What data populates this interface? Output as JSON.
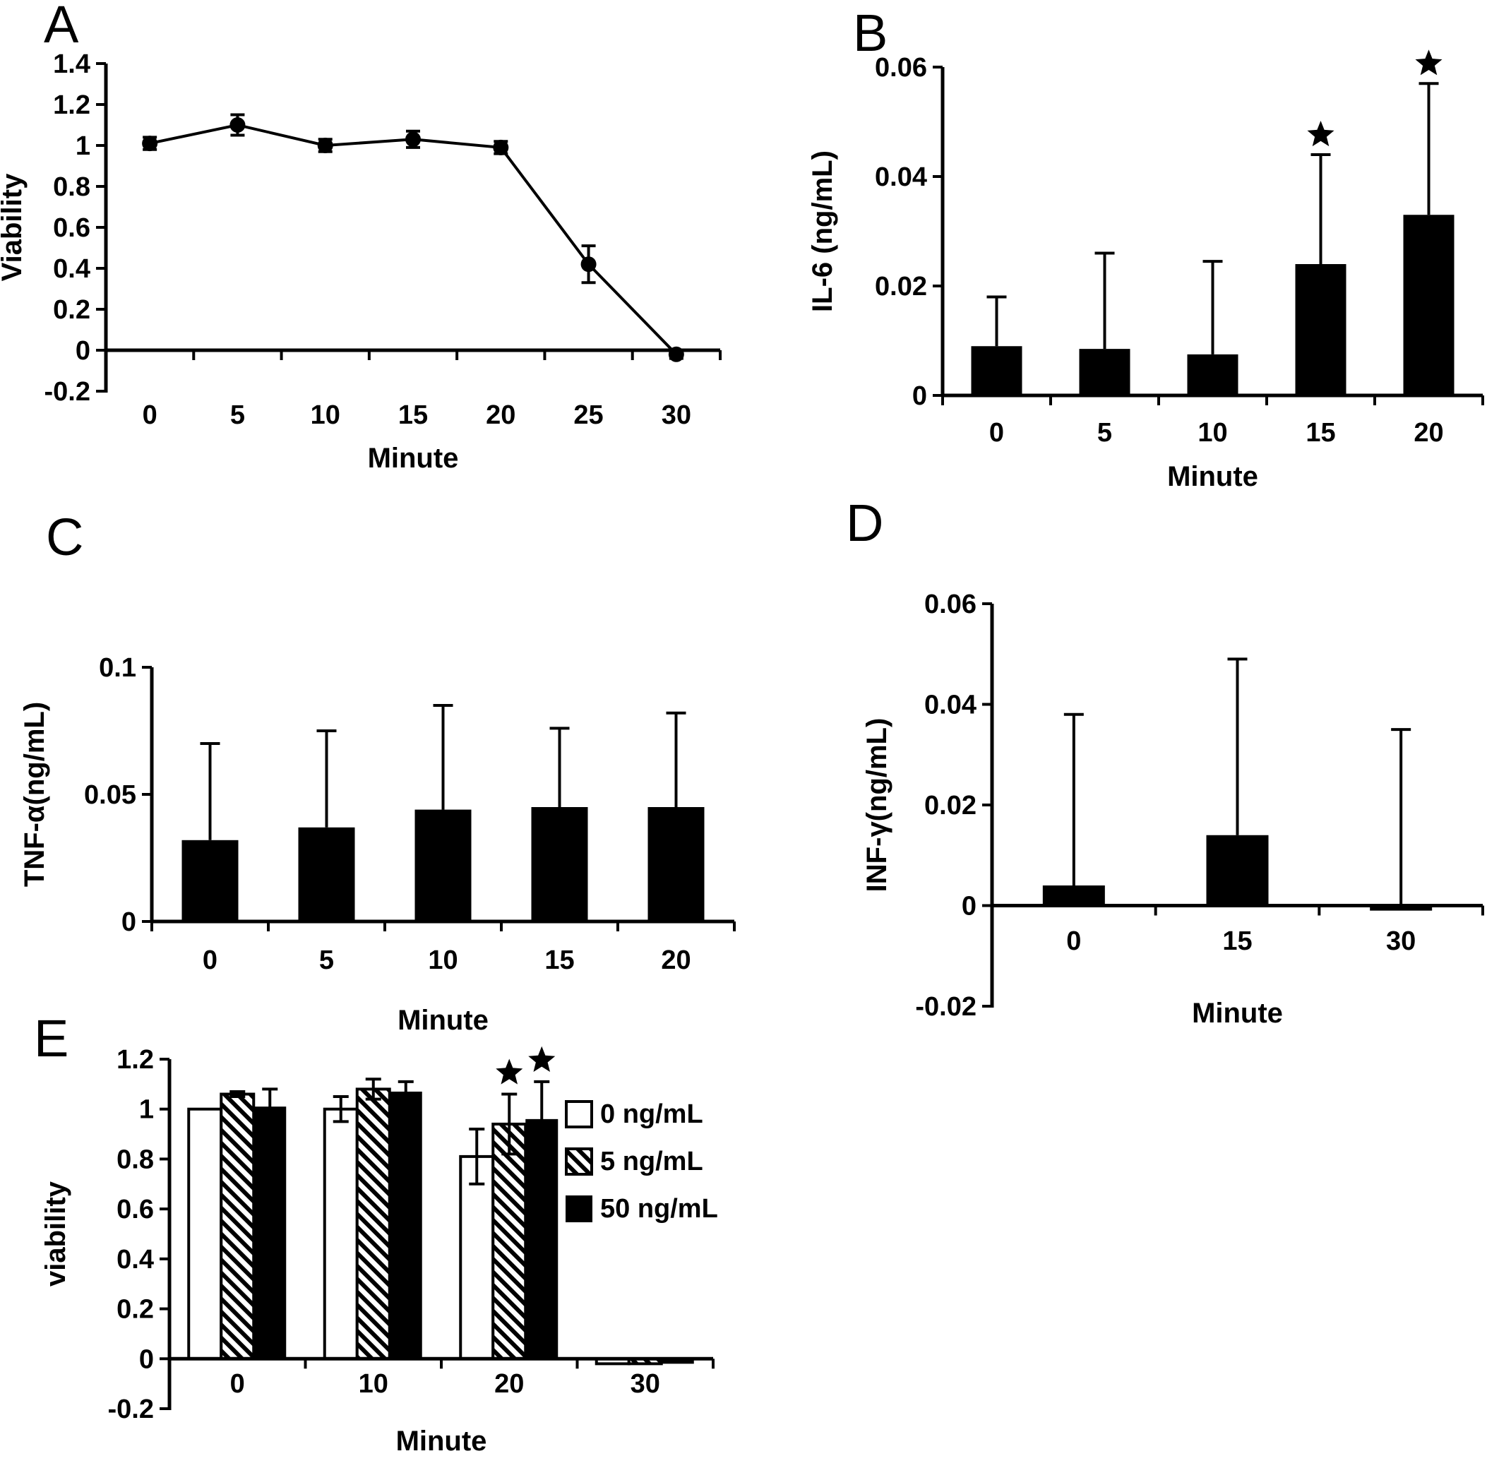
{
  "figure": {
    "background": "#ffffff",
    "ink": "#000000"
  },
  "panels": [
    {
      "letter": "A"
    },
    {
      "letter": "B"
    },
    {
      "letter": "C"
    },
    {
      "letter": "D"
    },
    {
      "letter": "E"
    }
  ],
  "chart_data": [
    {
      "panel": "A",
      "type": "line",
      "x": [
        0,
        5,
        10,
        15,
        20,
        25,
        30
      ],
      "xticklabels": [
        "0",
        "5",
        "10",
        "15",
        "20",
        "25",
        "30"
      ],
      "values": [
        1.01,
        1.1,
        1.0,
        1.03,
        0.99,
        0.42,
        -0.02
      ],
      "err": [
        0.03,
        0.05,
        0.03,
        0.04,
        0.03,
        0.09,
        0.02
      ],
      "xlabel": "Minute",
      "ylabel": "Viability",
      "ylim": [
        -0.2,
        1.4
      ],
      "yticks": [
        -0.2,
        0,
        0.2,
        0.4,
        0.6,
        0.8,
        1,
        1.2,
        1.4
      ],
      "yticklabels": [
        "-0.2",
        "0",
        "0.2",
        "0.4",
        "0.6",
        "0.8",
        "1",
        "1.2",
        "1.4"
      ],
      "marker": "filled-circle",
      "line_color": "#000000",
      "grid": false,
      "legend_position": "none"
    },
    {
      "panel": "B",
      "type": "bar",
      "categories": [
        "0",
        "5",
        "10",
        "15",
        "20"
      ],
      "values": [
        0.009,
        0.0085,
        0.0075,
        0.024,
        0.033
      ],
      "err_up": [
        0.009,
        0.0175,
        0.017,
        0.02,
        0.024
      ],
      "sig_markers": [
        false,
        false,
        false,
        true,
        true
      ],
      "sig_symbol": "asterisk",
      "xlabel": "Minute",
      "ylabel": "IL-6 (ng/mL)",
      "ylim": [
        0,
        0.06
      ],
      "yticks": [
        0,
        0.02,
        0.04,
        0.06
      ],
      "yticklabels": [
        "0",
        "0.02",
        "0.04",
        "0.06"
      ],
      "bar_fill": "#000000",
      "grid": false,
      "legend_position": "none"
    },
    {
      "panel": "C",
      "type": "bar",
      "categories": [
        "0",
        "5",
        "10",
        "15",
        "20"
      ],
      "values": [
        0.032,
        0.037,
        0.044,
        0.045,
        0.045
      ],
      "err_up": [
        0.038,
        0.038,
        0.041,
        0.031,
        0.037
      ],
      "sig_markers": [
        false,
        false,
        false,
        false,
        false
      ],
      "xlabel": "Minute",
      "ylabel": "TNF-α(ng/mL)",
      "ylim": [
        0,
        0.1
      ],
      "yticks": [
        0,
        0.05,
        0.1
      ],
      "yticklabels": [
        "0",
        "0.05",
        "0.1"
      ],
      "bar_fill": "#000000",
      "grid": false,
      "legend_position": "none"
    },
    {
      "panel": "D",
      "type": "bar",
      "categories": [
        "0",
        "15",
        "30"
      ],
      "values": [
        0.004,
        0.014,
        -0.001
      ],
      "err_up": [
        0.034,
        0.035,
        0.036
      ],
      "sig_markers": [
        false,
        false,
        false
      ],
      "xlabel": "Minute",
      "ylabel": "INF-γ(ng/mL)",
      "ylim": [
        -0.02,
        0.06
      ],
      "yticks": [
        -0.02,
        0,
        0.02,
        0.04,
        0.06
      ],
      "yticklabels": [
        "-0.02",
        "0",
        "0.02",
        "0.04",
        "0.06"
      ],
      "bar_fill": "#000000",
      "grid": false,
      "legend_position": "none"
    },
    {
      "panel": "E",
      "type": "grouped_bar",
      "categories": [
        "0",
        "10",
        "20",
        "30"
      ],
      "series": [
        {
          "name": "0 ng/mL",
          "fill": "white",
          "values": [
            1.0,
            1.0,
            0.81,
            -0.02
          ],
          "err": [
            0,
            0.05,
            0.11,
            0
          ],
          "sig_markers": [
            false,
            false,
            false,
            false
          ]
        },
        {
          "name": "5 ng/mL",
          "fill": "hatch",
          "values": [
            1.06,
            1.08,
            0.94,
            -0.02
          ],
          "err": [
            0.01,
            0.04,
            0.12,
            0
          ],
          "sig_markers": [
            false,
            false,
            true,
            false
          ]
        },
        {
          "name": "50 ng/mL",
          "fill": "black",
          "values": [
            1.01,
            1.07,
            0.96,
            -0.02
          ],
          "err": [
            0.07,
            0.04,
            0.15,
            0
          ],
          "sig_markers": [
            false,
            false,
            true,
            false
          ]
        }
      ],
      "xlabel": "Minute",
      "ylabel": "viability",
      "ylim": [
        -0.2,
        1.2
      ],
      "yticks": [
        -0.2,
        0,
        0.2,
        0.4,
        0.6,
        0.8,
        1,
        1.2
      ],
      "yticklabels": [
        "-0.2",
        "0",
        "0.2",
        "0.4",
        "0.6",
        "0.8",
        "1",
        "1.2"
      ],
      "legend": {
        "position": "right",
        "items": [
          "0 ng/mL",
          "5 ng/mL",
          "50 ng/mL"
        ]
      },
      "grid": false
    }
  ]
}
